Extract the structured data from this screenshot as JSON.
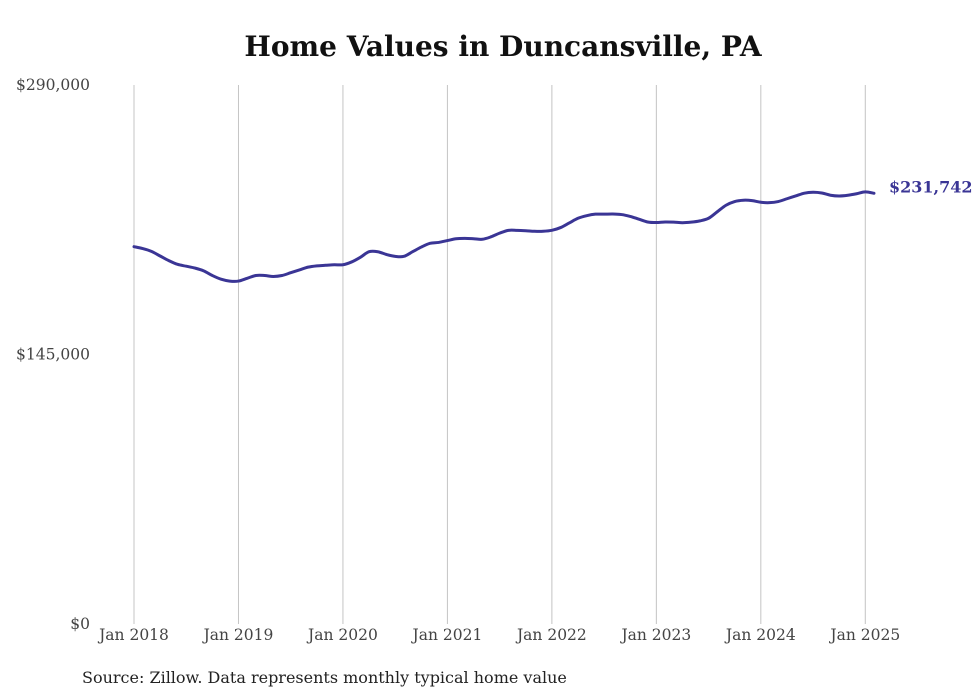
{
  "chart_data": {
    "type": "line",
    "title": "Home Values in Duncansville, PA",
    "xlabel": "",
    "ylabel": "",
    "ylim": [
      0,
      290000
    ],
    "y_ticks": [
      0,
      145000,
      290000
    ],
    "y_tick_labels": [
      "$0",
      "$145,000",
      "$290,000"
    ],
    "x_ticks": [
      "2018-01",
      "2019-01",
      "2020-01",
      "2021-01",
      "2022-01",
      "2023-01",
      "2024-01",
      "2025-01"
    ],
    "x_tick_labels": [
      "Jan 2018",
      "Jan 2019",
      "Jan 2020",
      "Jan 2021",
      "Jan 2022",
      "Jan 2023",
      "Jan 2024",
      "Jan 2025"
    ],
    "xlim": [
      "2018-01",
      "2025-02"
    ],
    "grid": "vertical",
    "line_color": "#3a3595",
    "end_label": "$231,742",
    "series": [
      {
        "x": [
          "2018-01",
          "2018-02",
          "2018-03",
          "2018-04",
          "2018-05",
          "2018-06",
          "2018-07",
          "2018-08",
          "2018-09",
          "2018-10",
          "2018-11",
          "2018-12",
          "2019-01",
          "2019-02",
          "2019-03",
          "2019-04",
          "2019-05",
          "2019-06",
          "2019-07",
          "2019-08",
          "2019-09",
          "2019-10",
          "2019-11",
          "2019-12",
          "2020-01",
          "2020-02",
          "2020-03",
          "2020-04",
          "2020-05",
          "2020-06",
          "2020-07",
          "2020-08",
          "2020-09",
          "2020-10",
          "2020-11",
          "2020-12",
          "2021-01",
          "2021-02",
          "2021-03",
          "2021-04",
          "2021-05",
          "2021-06",
          "2021-07",
          "2021-08",
          "2021-09",
          "2021-10",
          "2021-11",
          "2021-12",
          "2022-01",
          "2022-02",
          "2022-03",
          "2022-04",
          "2022-05",
          "2022-06",
          "2022-07",
          "2022-08",
          "2022-09",
          "2022-10",
          "2022-11",
          "2022-12",
          "2023-01",
          "2023-02",
          "2023-03",
          "2023-04",
          "2023-05",
          "2023-06",
          "2023-07",
          "2023-08",
          "2023-09",
          "2023-10",
          "2023-11",
          "2023-12",
          "2024-01",
          "2024-02",
          "2024-03",
          "2024-04",
          "2024-05",
          "2024-06",
          "2024-07",
          "2024-08",
          "2024-09",
          "2024-10",
          "2024-11",
          "2024-12",
          "2025-01",
          "2025-02"
        ],
        "values": [
          203000,
          202000,
          200500,
          198000,
          195500,
          193500,
          192500,
          191500,
          190000,
          187500,
          185500,
          184500,
          184500,
          186000,
          187500,
          187500,
          187000,
          187500,
          189000,
          190500,
          192000,
          192700,
          193000,
          193300,
          193300,
          194800,
          197300,
          200300,
          200300,
          198800,
          197800,
          197800,
          200300,
          202800,
          204800,
          205300,
          206300,
          207300,
          207500,
          207300,
          207000,
          208300,
          210300,
          211800,
          211800,
          211600,
          211300,
          211300,
          211800,
          213300,
          215800,
          218300,
          219700,
          220500,
          220500,
          220600,
          220300,
          219300,
          217800,
          216300,
          216000,
          216300,
          216200,
          215900,
          216200,
          216900,
          218300,
          221800,
          225300,
          227300,
          228000,
          227800,
          226900,
          226700,
          227300,
          228800,
          230300,
          231800,
          232300,
          231900,
          230700,
          230300,
          230700,
          231500,
          232500,
          231742
        ]
      }
    ]
  },
  "source": "Source: Zillow. Data represents monthly typical home value"
}
